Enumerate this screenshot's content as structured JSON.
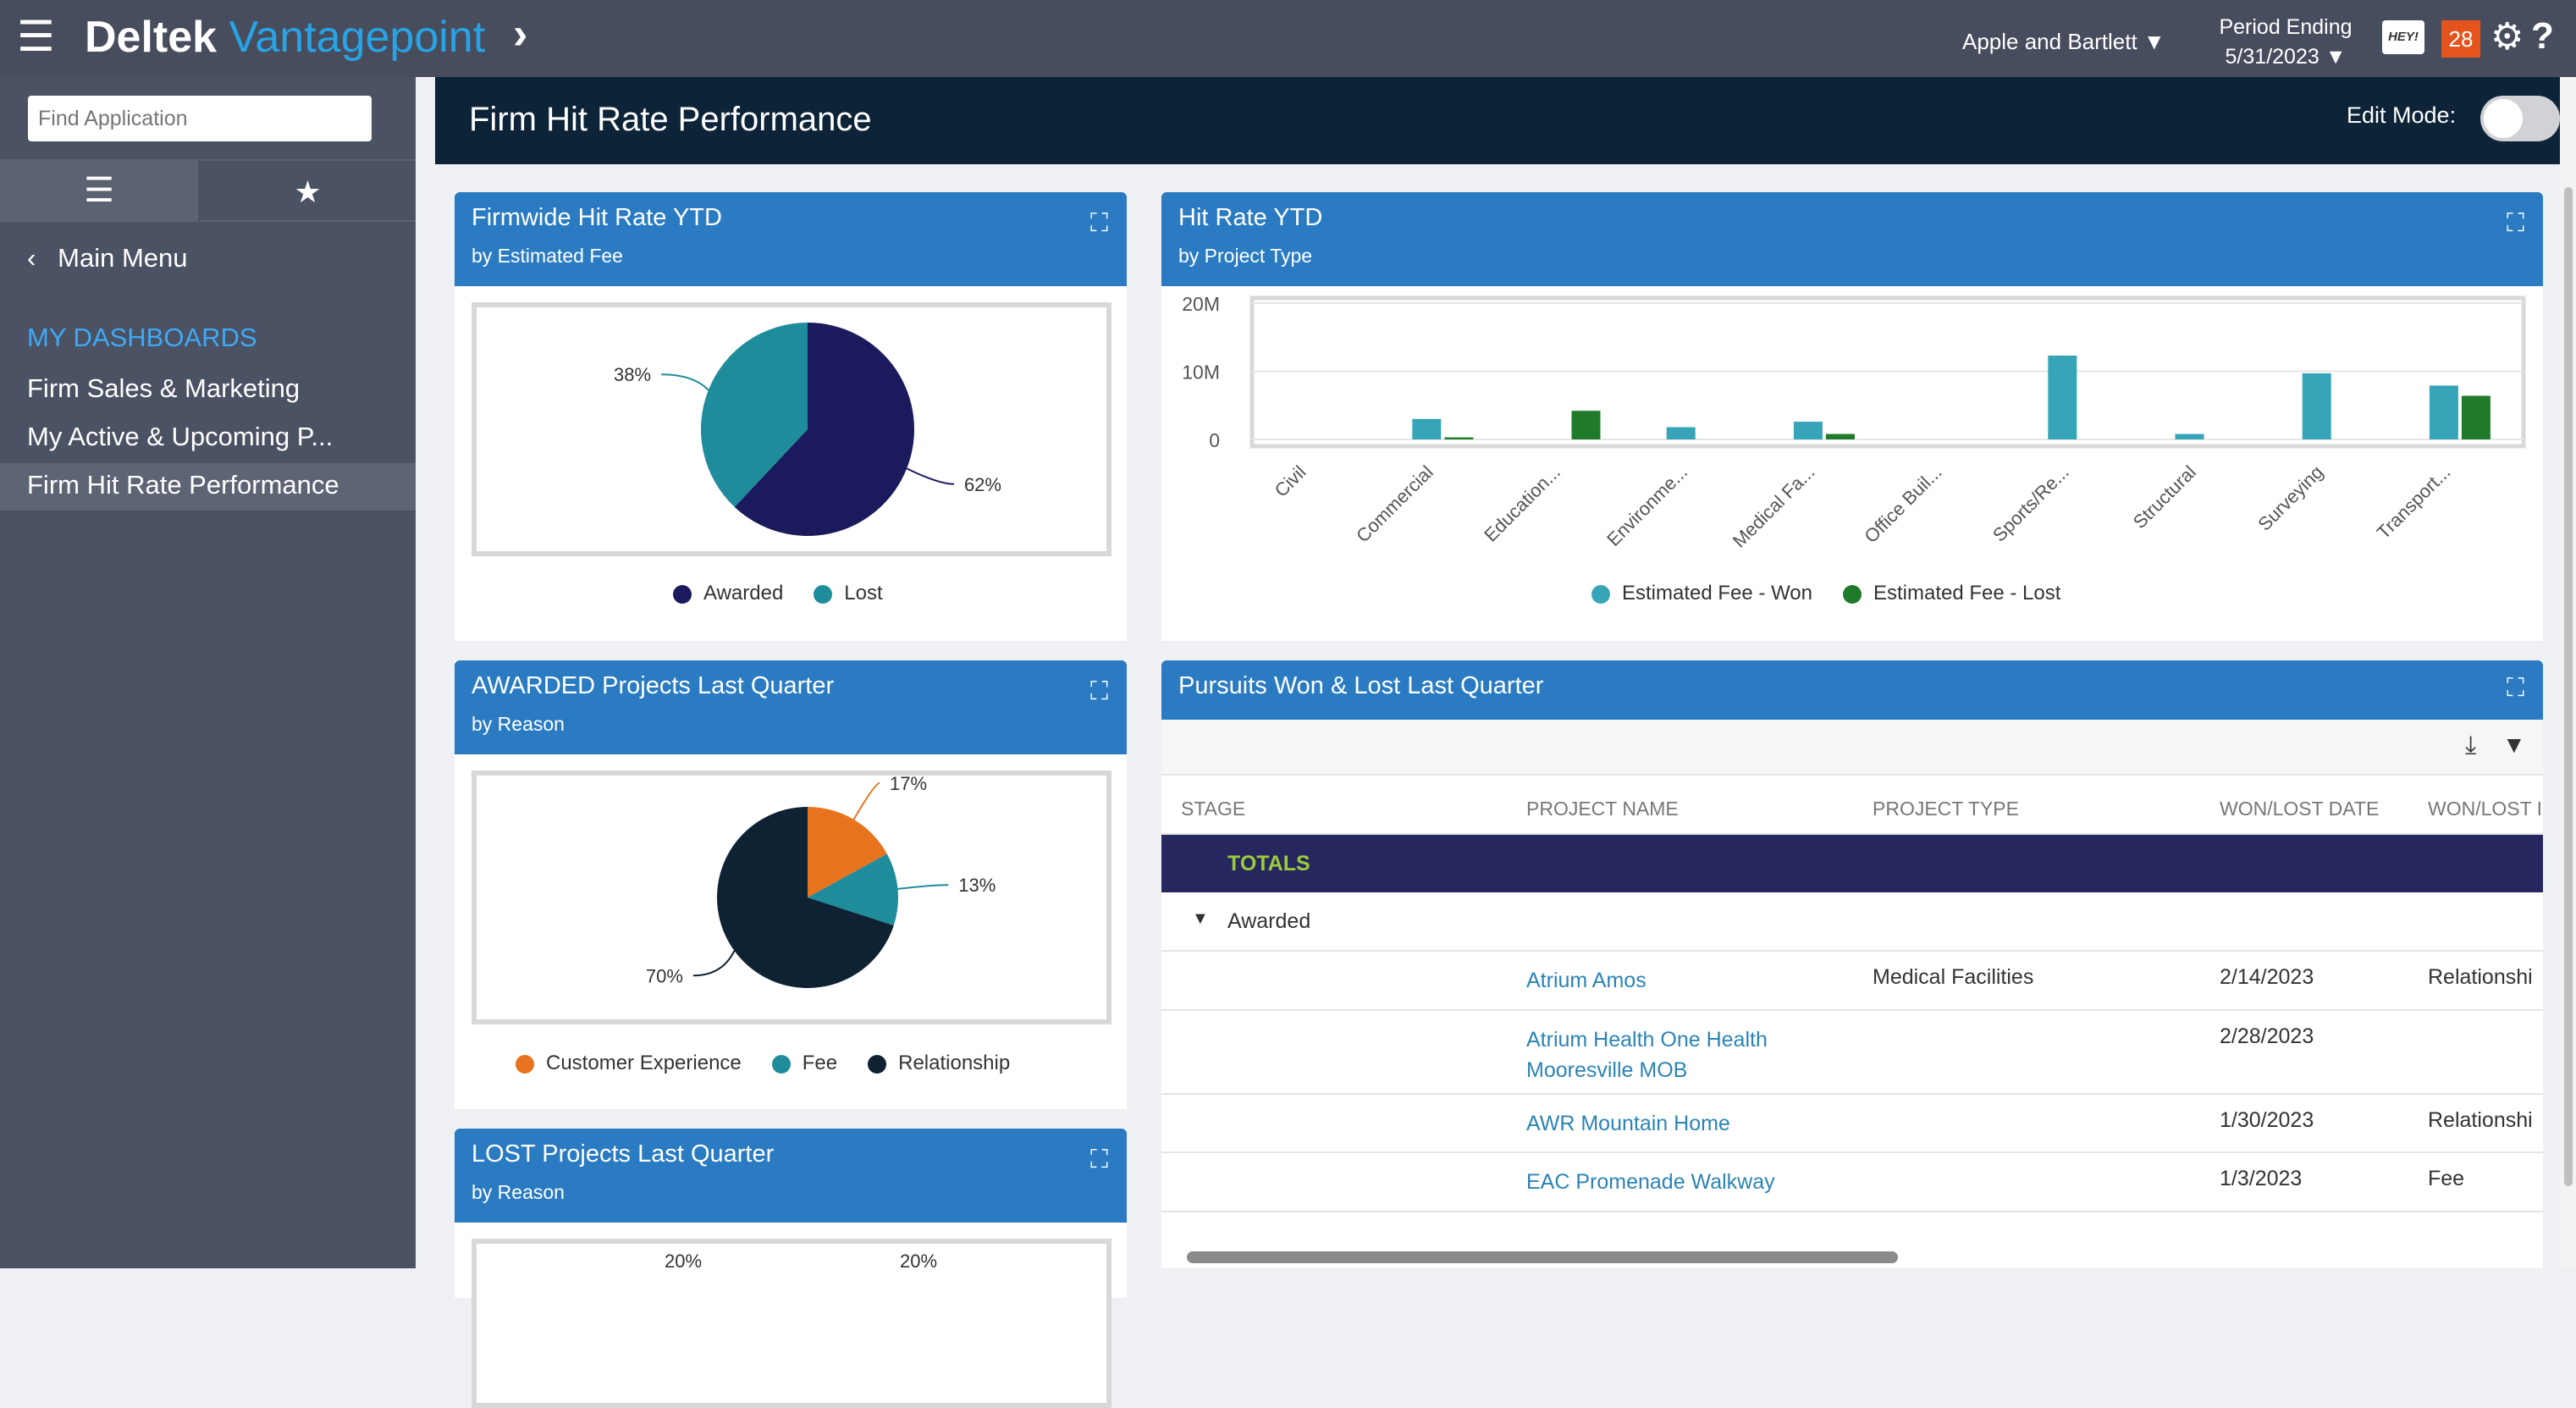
{
  "topbar": {
    "brand_a": "Deltek",
    "brand_b": "Vantagepoint",
    "company": "Apple and Bartlett",
    "period_label": "Period Ending",
    "period_date": "5/31/2023",
    "hey": "HEY!",
    "notifications": "28"
  },
  "sidebar": {
    "search_placeholder": "Find Application",
    "main_menu": "Main Menu",
    "section": "MY DASHBOARDS",
    "items": [
      {
        "label": "Firm Sales & Marketing"
      },
      {
        "label": "My Active & Upcoming P..."
      },
      {
        "label": "Firm Hit Rate Performance",
        "active": true
      }
    ]
  },
  "page": {
    "title": "Firm Hit Rate Performance",
    "edit_mode": "Edit Mode:",
    "edit_mode_on": false
  },
  "colors": {
    "header_blue": "#2a7bc2",
    "navy": "#0c2338",
    "awarded": "#1b1a5c",
    "lost": "#1f8c9c",
    "won_bar": "#36a5b8",
    "lost_bar": "#1f7a2a",
    "orange": "#e8731e",
    "totals": "#27275f"
  },
  "panels": {
    "p1": {
      "title": "Firmwide Hit Rate YTD",
      "subtitle": "by Estimated Fee"
    },
    "p2": {
      "title": "Hit Rate YTD",
      "subtitle": "by Project Type"
    },
    "p3": {
      "title": "AWARDED Projects Last Quarter",
      "subtitle": "by Reason"
    },
    "p4": {
      "title": "Pursuits Won & Lost Last Quarter"
    },
    "p5": {
      "title": "LOST Projects Last Quarter",
      "subtitle": "by Reason"
    }
  },
  "chart_data": [
    {
      "type": "pie",
      "slices": [
        {
          "label": "Awarded",
          "value": 62,
          "text": "62%",
          "color": "#1b1a5c"
        },
        {
          "label": "Lost",
          "value": 38,
          "text": "38%",
          "color": "#1f8c9c"
        }
      ]
    },
    {
      "type": "bar",
      "categories": [
        "Civil",
        "Commercial",
        "Education...",
        "Environme...",
        "Medical Fa...",
        "Office Buil...",
        "Sports/Re...",
        "Structural",
        "Surveying",
        "Transport..."
      ],
      "series": [
        {
          "name": "Estimated Fee - Won",
          "color": "#36a5b8",
          "values": [
            0,
            3.0,
            0,
            1.8,
            2.6,
            0,
            12.3,
            0.8,
            9.7,
            7.9
          ]
        },
        {
          "name": "Estimated Fee - Lost",
          "color": "#1f7a2a",
          "values": [
            0,
            0.3,
            4.2,
            0,
            0.8,
            0,
            0,
            0,
            0,
            6.4
          ]
        }
      ],
      "yticks": [
        "0",
        "10M",
        "20M"
      ],
      "ylim": [
        0,
        20
      ],
      "unit": "M",
      "grid": true,
      "legend": "bottom"
    },
    {
      "type": "pie",
      "slices": [
        {
          "label": "Customer Experience",
          "value": 17,
          "text": "17%",
          "color": "#e8731e"
        },
        {
          "label": "Fee",
          "value": 13,
          "text": "13%",
          "color": "#1f8c9c"
        },
        {
          "label": "Relationship",
          "value": 70,
          "text": "70%",
          "color": "#0e2233"
        }
      ]
    },
    {
      "type": "pie",
      "visible_labels": [
        "20%",
        "20%"
      ]
    }
  ],
  "table": {
    "columns": [
      "STAGE",
      "PROJECT NAME",
      "PROJECT TYPE",
      "WON/LOST DATE",
      "WON/LOST I"
    ],
    "totals": "TOTALS",
    "group": "Awarded",
    "rows": [
      {
        "name": "Atrium Amos",
        "type": "Medical Facilities",
        "date": "2/14/2023",
        "reason": "Relationshi"
      },
      {
        "name": "Atrium Health One Health Mooresville MOB",
        "type": "",
        "date": "2/28/2023",
        "reason": ""
      },
      {
        "name": "AWR Mountain Home",
        "type": "",
        "date": "1/30/2023",
        "reason": "Relationshi"
      },
      {
        "name": "EAC Promenade Walkway",
        "type": "",
        "date": "1/3/2023",
        "reason": "Fee"
      }
    ]
  }
}
